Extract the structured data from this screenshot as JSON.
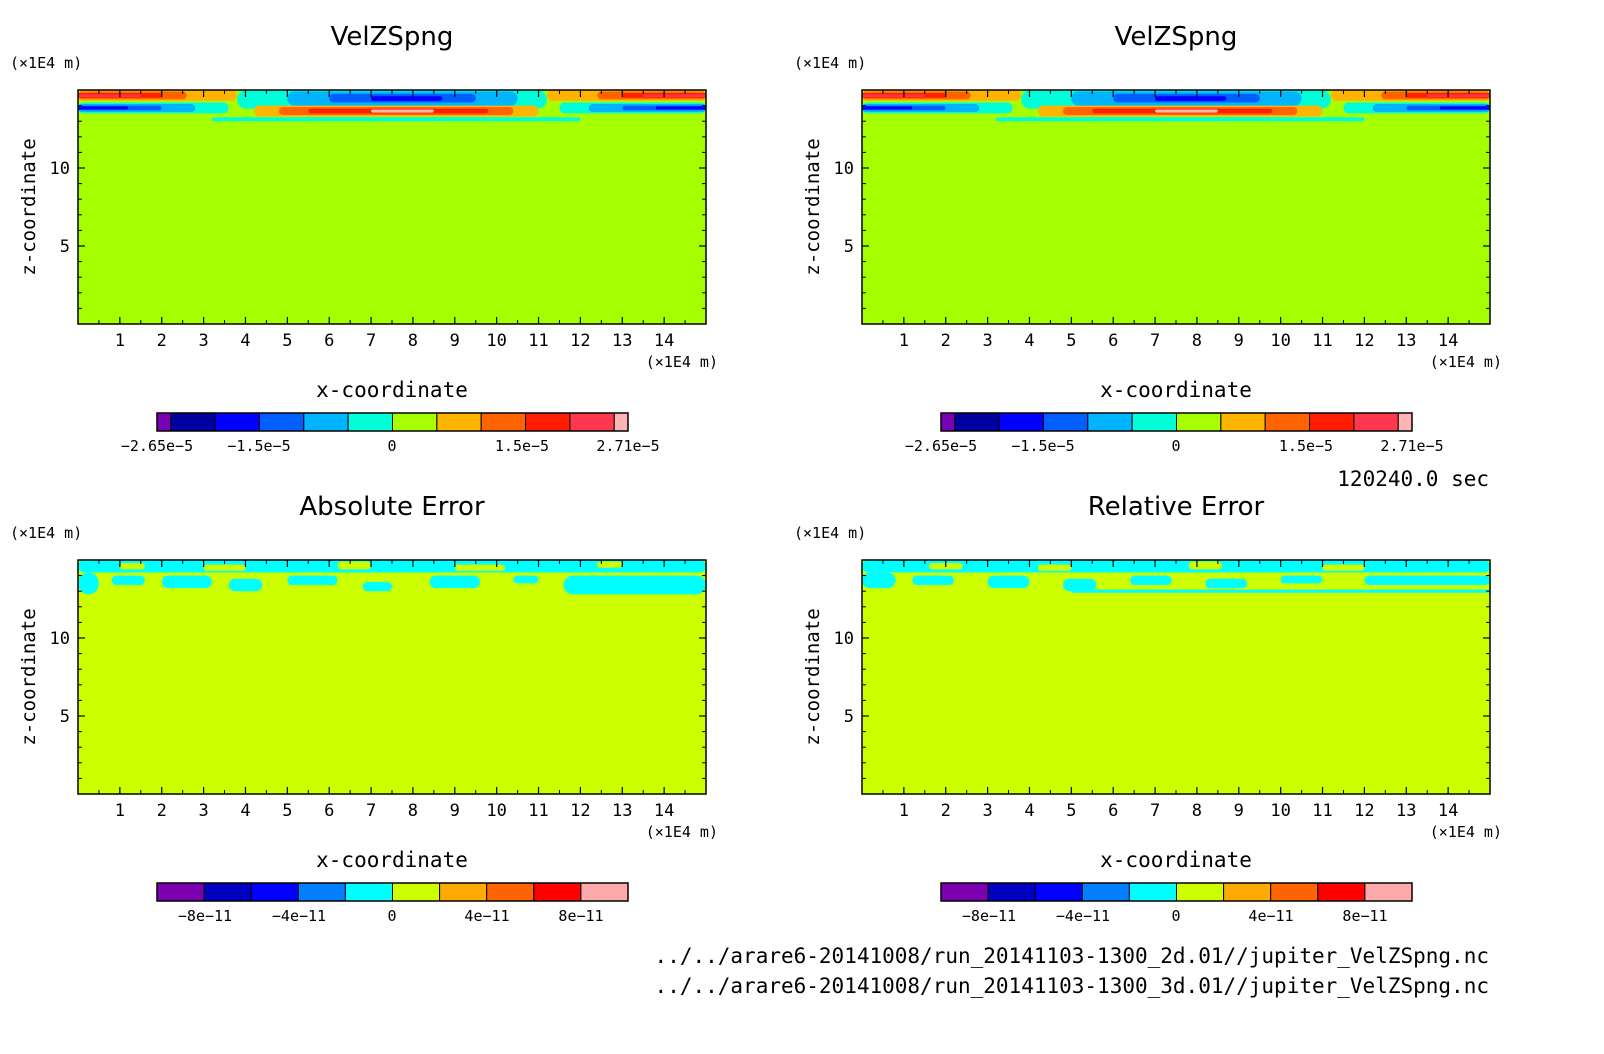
{
  "colors": {
    "field_background": "#a6ff00",
    "error_background": "#ccff00",
    "velocity_levels": [
      "#7a00b0",
      "#0000a0",
      "#0000ff",
      "#005fff",
      "#00b4ff",
      "#00ffd8",
      "#a6ff00",
      "#ffb400",
      "#ff6400",
      "#ff1e00",
      "#ff3850",
      "#ffb4b4"
    ],
    "error_levels": [
      "#7a00b0",
      "#0000c0",
      "#0000ff",
      "#0080ff",
      "#00ffff",
      "#ccff00",
      "#ffaa00",
      "#ff6400",
      "#ff0000",
      "#ffaaaa"
    ]
  },
  "time_label": "120240.0 sec",
  "file_paths": [
    "../../arare6-20141008/run_20141103-1300_2d.01//jupiter_VelZSpng.nc",
    "../../arare6-20141008/run_20141103-1300_3d.01//jupiter_VelZSpng.nc"
  ],
  "chart_data": [
    {
      "type": "heatmap",
      "title": "VelZSpng",
      "xlabel": "x-coordinate",
      "ylabel": "z-coordinate",
      "x_unit": "(×1E4 m)",
      "y_unit": "(×1E4 m)",
      "xlim": [
        0,
        15
      ],
      "ylim": [
        0,
        15
      ],
      "x_ticks": [
        "1",
        "2",
        "3",
        "4",
        "5",
        "6",
        "7",
        "8",
        "9",
        "10",
        "11",
        "12",
        "13",
        "14"
      ],
      "y_ticks": [
        "5",
        "10"
      ],
      "background_level": 6,
      "bands": [
        {
          "x": [
            0,
            3.8
          ],
          "z": [
            14.3,
            15
          ],
          "level": 7
        },
        {
          "x": [
            0,
            2.6
          ],
          "z": [
            14.4,
            14.9
          ],
          "level": 8
        },
        {
          "x": [
            0,
            2.0
          ],
          "z": [
            14.5,
            14.8
          ],
          "level": 9
        },
        {
          "x": [
            0,
            1.5
          ],
          "z": [
            14.55,
            14.7
          ],
          "level": 10
        },
        {
          "x": [
            3.8,
            11.2
          ],
          "z": [
            13.8,
            15
          ],
          "level": 5
        },
        {
          "x": [
            5.0,
            10.5
          ],
          "z": [
            14.0,
            14.9
          ],
          "level": 4
        },
        {
          "x": [
            6.0,
            9.5
          ],
          "z": [
            14.2,
            14.75
          ],
          "level": 3
        },
        {
          "x": [
            7.0,
            8.7
          ],
          "z": [
            14.3,
            14.6
          ],
          "level": 2
        },
        {
          "x": [
            11.2,
            15
          ],
          "z": [
            14.3,
            15
          ],
          "level": 7
        },
        {
          "x": [
            12.4,
            15
          ],
          "z": [
            14.4,
            14.9
          ],
          "level": 8
        },
        {
          "x": [
            13.0,
            15
          ],
          "z": [
            14.5,
            14.8
          ],
          "level": 9
        },
        {
          "x": [
            13.5,
            15
          ],
          "z": [
            14.55,
            14.7
          ],
          "level": 10
        },
        {
          "x": [
            0,
            3.6
          ],
          "z": [
            13.5,
            14.2
          ],
          "level": 5
        },
        {
          "x": [
            0,
            2.8
          ],
          "z": [
            13.6,
            14.1
          ],
          "level": 4
        },
        {
          "x": [
            0,
            2.0
          ],
          "z": [
            13.7,
            14.0
          ],
          "level": 3
        },
        {
          "x": [
            0,
            1.2
          ],
          "z": [
            13.75,
            13.95
          ],
          "level": 2
        },
        {
          "x": [
            11.5,
            15
          ],
          "z": [
            13.5,
            14.2
          ],
          "level": 5
        },
        {
          "x": [
            12.2,
            15
          ],
          "z": [
            13.6,
            14.1
          ],
          "level": 4
        },
        {
          "x": [
            13.0,
            15
          ],
          "z": [
            13.7,
            14.0
          ],
          "level": 3
        },
        {
          "x": [
            13.8,
            15
          ],
          "z": [
            13.75,
            13.95
          ],
          "level": 2
        },
        {
          "x": [
            4.2,
            11.0
          ],
          "z": [
            13.3,
            14.0
          ],
          "level": 7
        },
        {
          "x": [
            4.8,
            10.4
          ],
          "z": [
            13.4,
            13.9
          ],
          "level": 8
        },
        {
          "x": [
            5.5,
            9.8
          ],
          "z": [
            13.5,
            13.8
          ],
          "level": 9
        },
        {
          "x": [
            7.0,
            8.5
          ],
          "z": [
            13.55,
            13.75
          ],
          "level": 11
        },
        {
          "x": [
            3.2,
            12.0
          ],
          "z": [
            13.0,
            13.25
          ],
          "level": 5
        }
      ],
      "colorbar": {
        "labels": [
          "−2.65e−5",
          "−1.5e−5",
          "0",
          "1.5e−5",
          "2.71e−5"
        ]
      }
    },
    {
      "type": "heatmap",
      "title": "VelZSpng",
      "xlabel": "x-coordinate",
      "ylabel": "z-coordinate",
      "x_unit": "(×1E4 m)",
      "y_unit": "(×1E4 m)",
      "xlim": [
        0,
        15
      ],
      "ylim": [
        0,
        15
      ],
      "x_ticks": [
        "1",
        "2",
        "3",
        "4",
        "5",
        "6",
        "7",
        "8",
        "9",
        "10",
        "11",
        "12",
        "13",
        "14"
      ],
      "y_ticks": [
        "5",
        "10"
      ],
      "background_level": 6,
      "bands": [
        {
          "x": [
            0,
            3.8
          ],
          "z": [
            14.3,
            15
          ],
          "level": 7
        },
        {
          "x": [
            0,
            2.6
          ],
          "z": [
            14.4,
            14.9
          ],
          "level": 8
        },
        {
          "x": [
            0,
            2.0
          ],
          "z": [
            14.5,
            14.8
          ],
          "level": 9
        },
        {
          "x": [
            0,
            1.5
          ],
          "z": [
            14.55,
            14.7
          ],
          "level": 10
        },
        {
          "x": [
            3.8,
            11.2
          ],
          "z": [
            13.8,
            15
          ],
          "level": 5
        },
        {
          "x": [
            5.0,
            10.5
          ],
          "z": [
            14.0,
            14.9
          ],
          "level": 4
        },
        {
          "x": [
            6.0,
            9.5
          ],
          "z": [
            14.2,
            14.75
          ],
          "level": 3
        },
        {
          "x": [
            7.0,
            8.7
          ],
          "z": [
            14.3,
            14.6
          ],
          "level": 2
        },
        {
          "x": [
            11.2,
            15
          ],
          "z": [
            14.3,
            15
          ],
          "level": 7
        },
        {
          "x": [
            12.4,
            15
          ],
          "z": [
            14.4,
            14.9
          ],
          "level": 8
        },
        {
          "x": [
            13.0,
            15
          ],
          "z": [
            14.5,
            14.8
          ],
          "level": 9
        },
        {
          "x": [
            13.5,
            15
          ],
          "z": [
            14.55,
            14.7
          ],
          "level": 10
        },
        {
          "x": [
            0,
            3.6
          ],
          "z": [
            13.5,
            14.2
          ],
          "level": 5
        },
        {
          "x": [
            0,
            2.8
          ],
          "z": [
            13.6,
            14.1
          ],
          "level": 4
        },
        {
          "x": [
            0,
            2.0
          ],
          "z": [
            13.7,
            14.0
          ],
          "level": 3
        },
        {
          "x": [
            0,
            1.2
          ],
          "z": [
            13.75,
            13.95
          ],
          "level": 2
        },
        {
          "x": [
            11.5,
            15
          ],
          "z": [
            13.5,
            14.2
          ],
          "level": 5
        },
        {
          "x": [
            12.2,
            15
          ],
          "z": [
            13.6,
            14.1
          ],
          "level": 4
        },
        {
          "x": [
            13.0,
            15
          ],
          "z": [
            13.7,
            14.0
          ],
          "level": 3
        },
        {
          "x": [
            13.8,
            15
          ],
          "z": [
            13.75,
            13.95
          ],
          "level": 2
        },
        {
          "x": [
            4.2,
            11.0
          ],
          "z": [
            13.3,
            14.0
          ],
          "level": 7
        },
        {
          "x": [
            4.8,
            10.4
          ],
          "z": [
            13.4,
            13.9
          ],
          "level": 8
        },
        {
          "x": [
            5.5,
            9.8
          ],
          "z": [
            13.5,
            13.8
          ],
          "level": 9
        },
        {
          "x": [
            7.0,
            8.5
          ],
          "z": [
            13.55,
            13.75
          ],
          "level": 11
        },
        {
          "x": [
            3.2,
            12.0
          ],
          "z": [
            13.0,
            13.25
          ],
          "level": 5
        }
      ],
      "colorbar": {
        "labels": [
          "−2.65e−5",
          "−1.5e−5",
          "0",
          "1.5e−5",
          "2.71e−5"
        ]
      }
    },
    {
      "type": "heatmap",
      "title": "Absolute Error",
      "xlabel": "x-coordinate",
      "ylabel": "z-coordinate",
      "x_unit": "(×1E4 m)",
      "y_unit": "(×1E4 m)",
      "xlim": [
        0,
        15
      ],
      "ylim": [
        0,
        15
      ],
      "x_ticks": [
        "1",
        "2",
        "3",
        "4",
        "5",
        "6",
        "7",
        "8",
        "9",
        "10",
        "11",
        "12",
        "13",
        "14"
      ],
      "y_ticks": [
        "5",
        "10"
      ],
      "background_level": 5,
      "bands": [
        {
          "x": [
            0,
            15
          ],
          "z": [
            14.2,
            15
          ],
          "level": 4
        },
        {
          "x": [
            0,
            0.5
          ],
          "z": [
            12.8,
            14.2
          ],
          "level": 4
        },
        {
          "x": [
            0.8,
            1.6
          ],
          "z": [
            13.4,
            14.0
          ],
          "level": 4
        },
        {
          "x": [
            2.0,
            3.2
          ],
          "z": [
            13.2,
            14.0
          ],
          "level": 4
        },
        {
          "x": [
            3.6,
            4.4
          ],
          "z": [
            13.0,
            13.8
          ],
          "level": 4
        },
        {
          "x": [
            5.0,
            6.2
          ],
          "z": [
            13.4,
            14.0
          ],
          "level": 4
        },
        {
          "x": [
            6.8,
            7.5
          ],
          "z": [
            13.0,
            13.6
          ],
          "level": 4
        },
        {
          "x": [
            8.4,
            9.6
          ],
          "z": [
            13.2,
            14.0
          ],
          "level": 4
        },
        {
          "x": [
            10.4,
            11.0
          ],
          "z": [
            13.5,
            14.0
          ],
          "level": 4
        },
        {
          "x": [
            11.6,
            15
          ],
          "z": [
            12.8,
            14.0
          ],
          "level": 4
        },
        {
          "x": [
            1.0,
            1.6
          ],
          "z": [
            14.4,
            14.8
          ],
          "level": 5
        },
        {
          "x": [
            3.0,
            4.0
          ],
          "z": [
            14.3,
            14.7
          ],
          "level": 5
        },
        {
          "x": [
            6.2,
            7.0
          ],
          "z": [
            14.4,
            14.9
          ],
          "level": 5
        },
        {
          "x": [
            9.0,
            10.2
          ],
          "z": [
            14.3,
            14.7
          ],
          "level": 5
        },
        {
          "x": [
            12.4,
            13.0
          ],
          "z": [
            14.5,
            14.9
          ],
          "level": 5
        }
      ],
      "colorbar": {
        "labels": [
          "−8e−11",
          "−4e−11",
          "0",
          "4e−11",
          "8e−11"
        ]
      }
    },
    {
      "type": "heatmap",
      "title": "Relative Error",
      "xlabel": "x-coordinate",
      "ylabel": "z-coordinate",
      "x_unit": "(×1E4 m)",
      "y_unit": "(×1E4 m)",
      "xlim": [
        0,
        15
      ],
      "ylim": [
        0,
        15
      ],
      "x_ticks": [
        "1",
        "2",
        "3",
        "4",
        "5",
        "6",
        "7",
        "8",
        "9",
        "10",
        "11",
        "12",
        "13",
        "14"
      ],
      "y_ticks": [
        "5",
        "10"
      ],
      "background_level": 5,
      "bands": [
        {
          "x": [
            0,
            15
          ],
          "z": [
            14.2,
            15
          ],
          "level": 4
        },
        {
          "x": [
            0,
            0.8
          ],
          "z": [
            13.2,
            14.2
          ],
          "level": 4
        },
        {
          "x": [
            1.2,
            2.2
          ],
          "z": [
            13.4,
            14.0
          ],
          "level": 4
        },
        {
          "x": [
            3.0,
            4.0
          ],
          "z": [
            13.2,
            14.0
          ],
          "level": 4
        },
        {
          "x": [
            4.8,
            5.6
          ],
          "z": [
            13.0,
            13.8
          ],
          "level": 4
        },
        {
          "x": [
            6.4,
            7.4
          ],
          "z": [
            13.4,
            14.0
          ],
          "level": 4
        },
        {
          "x": [
            8.2,
            9.2
          ],
          "z": [
            13.2,
            13.8
          ],
          "level": 4
        },
        {
          "x": [
            10.0,
            11.0
          ],
          "z": [
            13.5,
            14.0
          ],
          "level": 4
        },
        {
          "x": [
            12.0,
            15
          ],
          "z": [
            13.4,
            14.0
          ],
          "level": 4
        },
        {
          "x": [
            5.0,
            12.0
          ],
          "z": [
            12.9,
            13.1
          ],
          "level": 4
        },
        {
          "x": [
            12.0,
            15
          ],
          "z": [
            12.9,
            13.1
          ],
          "level": 4
        },
        {
          "x": [
            1.6,
            2.4
          ],
          "z": [
            14.4,
            14.8
          ],
          "level": 5
        },
        {
          "x": [
            4.2,
            5.0
          ],
          "z": [
            14.3,
            14.7
          ],
          "level": 5
        },
        {
          "x": [
            7.8,
            8.6
          ],
          "z": [
            14.4,
            14.9
          ],
          "level": 5
        },
        {
          "x": [
            11.0,
            12.0
          ],
          "z": [
            14.3,
            14.7
          ],
          "level": 5
        }
      ],
      "colorbar": {
        "labels": [
          "−8e−11",
          "−4e−11",
          "0",
          "4e−11",
          "8e−11"
        ]
      }
    }
  ]
}
